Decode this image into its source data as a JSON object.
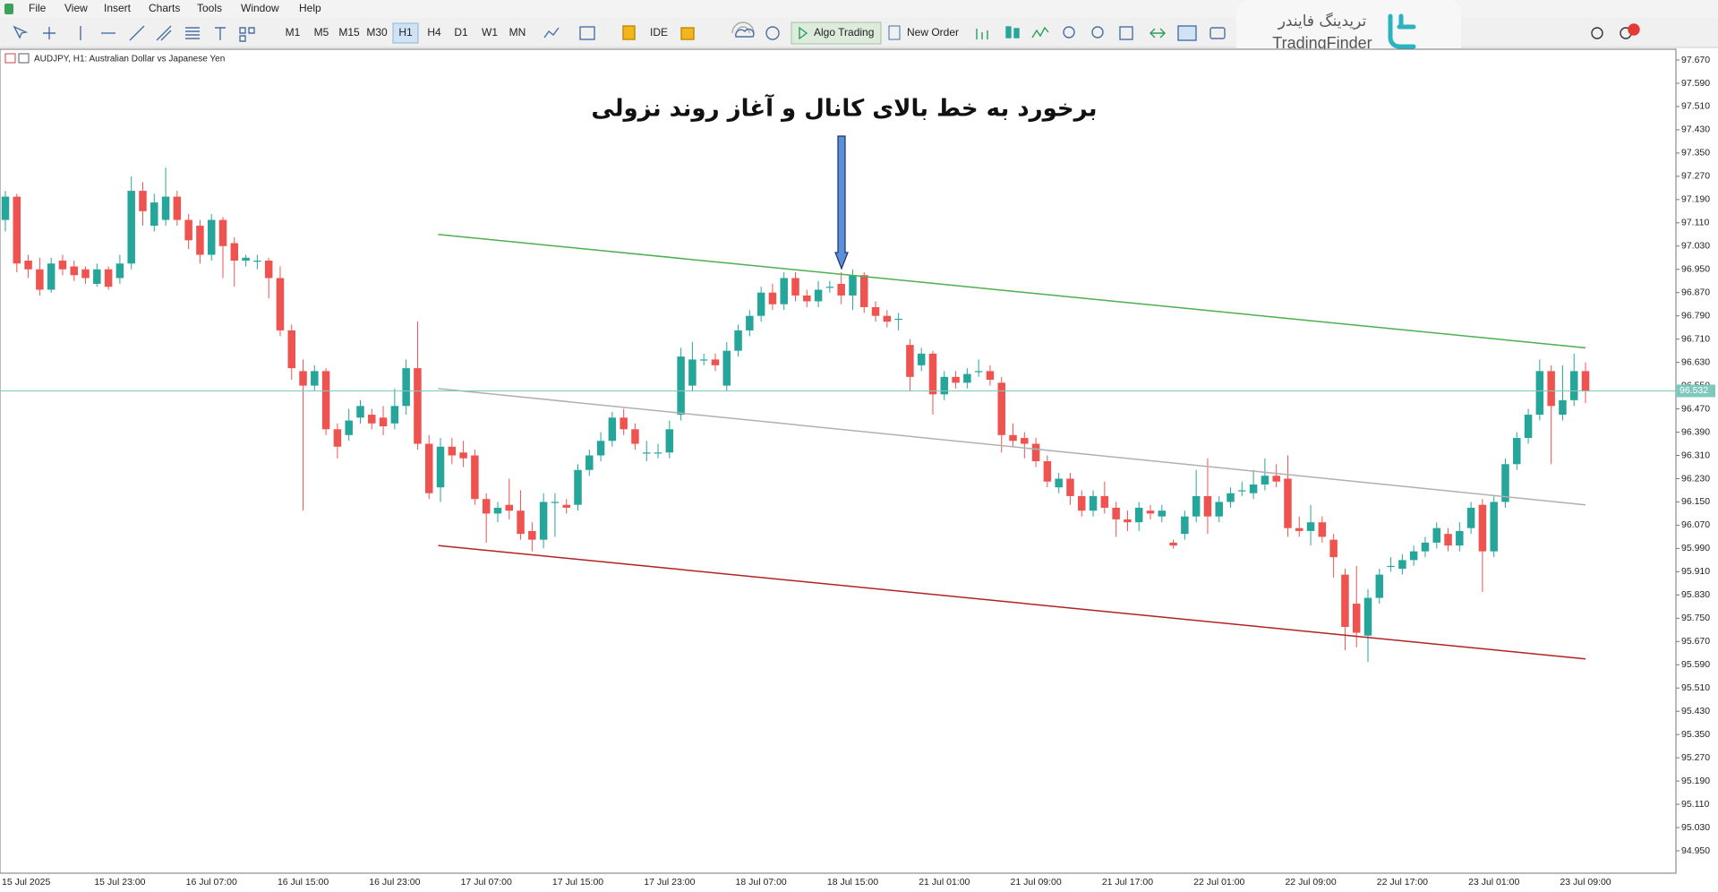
{
  "ui": {
    "menu": [
      "File",
      "View",
      "Insert",
      "Charts",
      "Tools",
      "Window",
      "Help"
    ],
    "timeframes": [
      "M1",
      "M5",
      "M15",
      "M30",
      "H1",
      "H4",
      "D1",
      "W1",
      "MN"
    ],
    "active_timeframe_index": 4,
    "ide": "IDE",
    "algo_trading": "Algo Trading",
    "new_order": "New Order",
    "symbol_label": "AUDJPY, H1:  Australian Dollar vs Japanese Yen",
    "logo_fa": "تریدینگ فایندر",
    "logo_en": "TradingFinder"
  },
  "chart_data": {
    "type": "candlestick",
    "annotation": "برخورد به خط بالای کانال و آغاز روند نزولی",
    "up_color": "#26a69a",
    "down_color": "#ef5350",
    "grid": false,
    "ylim": [
      94.873,
      97.707
    ],
    "yticks": [
      {
        "value": 97.67,
        "label": "97.670"
      },
      {
        "value": 97.59,
        "label": "97.590"
      },
      {
        "value": 97.51,
        "label": "97.510"
      },
      {
        "value": 97.43,
        "label": "97.430"
      },
      {
        "value": 97.35,
        "label": "97.350"
      },
      {
        "value": 97.27,
        "label": "97.270"
      },
      {
        "value": 97.19,
        "label": "97.190"
      },
      {
        "value": 97.11,
        "label": "97.110"
      },
      {
        "value": 97.03,
        "label": "97.030"
      },
      {
        "value": 96.95,
        "label": "96.950"
      },
      {
        "value": 96.87,
        "label": "96.870"
      },
      {
        "value": 96.79,
        "label": "96.790"
      },
      {
        "value": 96.71,
        "label": "96.710"
      },
      {
        "value": 96.63,
        "label": "96.630"
      },
      {
        "value": 96.55,
        "label": "96.550"
      },
      {
        "value": 96.47,
        "label": "96.470"
      },
      {
        "value": 96.39,
        "label": "96.390"
      },
      {
        "value": 96.31,
        "label": "96.310"
      },
      {
        "value": 96.23,
        "label": "96.230"
      },
      {
        "value": 96.15,
        "label": "96.150"
      },
      {
        "value": 96.07,
        "label": "96.070"
      },
      {
        "value": 95.99,
        "label": "95.990"
      },
      {
        "value": 95.91,
        "label": "95.910"
      },
      {
        "value": 95.83,
        "label": "95.830"
      },
      {
        "value": 95.75,
        "label": "95.750"
      },
      {
        "value": 95.67,
        "label": "95.670"
      },
      {
        "value": 95.59,
        "label": "95.590"
      },
      {
        "value": 95.51,
        "label": "95.510"
      },
      {
        "value": 95.43,
        "label": "95.430"
      },
      {
        "value": 95.35,
        "label": "95.350"
      },
      {
        "value": 95.27,
        "label": "95.270"
      },
      {
        "value": 95.19,
        "label": "95.190"
      },
      {
        "value": 95.11,
        "label": "95.110"
      },
      {
        "value": 95.03,
        "label": "95.030"
      },
      {
        "value": 94.95,
        "label": "94.950"
      }
    ],
    "bid": {
      "value": 96.532,
      "label": "96.532",
      "color": "#7fc8bd"
    },
    "categories": [
      "15 Jul 2025",
      null,
      null,
      null,
      null,
      null,
      null,
      null,
      "15 Jul 23:00",
      null,
      null,
      null,
      null,
      null,
      null,
      null,
      "16 Jul 07:00",
      null,
      null,
      null,
      null,
      null,
      null,
      null,
      "16 Jul 15:00",
      null,
      null,
      null,
      null,
      null,
      null,
      null,
      "16 Jul 23:00",
      null,
      null,
      null,
      null,
      null,
      null,
      null,
      "17 Jul 07:00",
      null,
      null,
      null,
      null,
      null,
      null,
      null,
      "17 Jul 15:00",
      null,
      null,
      null,
      null,
      null,
      null,
      null,
      "17 Jul 23:00",
      null,
      null,
      null,
      null,
      null,
      null,
      null,
      "18 Jul 07:00",
      null,
      null,
      null,
      null,
      null,
      null,
      null,
      "18 Jul 15:00",
      null,
      null,
      null,
      null,
      null,
      null,
      null,
      "21 Jul 01:00",
      null,
      null,
      null,
      null,
      null,
      null,
      null,
      "21 Jul 09:00",
      null,
      null,
      null,
      null,
      null,
      null,
      null,
      "21 Jul 17:00",
      null,
      null,
      null,
      null,
      null,
      null,
      null,
      "22 Jul 01:00",
      null,
      null,
      null,
      null,
      null,
      null,
      null,
      "22 Jul 09:00",
      null,
      null,
      null,
      null,
      null,
      null,
      null,
      "22 Jul 17:00",
      null,
      null,
      null,
      null,
      null,
      null,
      null,
      "23 Jul 01:00",
      null,
      null,
      null,
      null,
      null,
      null,
      null,
      "23 Jul 09:00",
      null,
      null
    ],
    "open": [
      97.12,
      97.2,
      96.98,
      96.95,
      96.88,
      96.98,
      96.96,
      96.95,
      96.9,
      96.95,
      96.92,
      96.97,
      97.22,
      97.1,
      97.12,
      97.2,
      97.12,
      97.1,
      97.0,
      97.12,
      97.04,
      96.98,
      96.98,
      96.98,
      96.92,
      96.74,
      96.6,
      96.55,
      96.6,
      96.4,
      96.38,
      96.44,
      96.45,
      96.44,
      96.42,
      96.48,
      96.61,
      96.35,
      96.2,
      96.34,
      96.32,
      96.31,
      96.16,
      96.11,
      96.14,
      96.12,
      96.05,
      96.02,
      96.15,
      96.14,
      96.14,
      96.26,
      96.31,
      96.36,
      96.44,
      96.4,
      96.32,
      96.32,
      96.32,
      96.45,
      96.55,
      96.64,
      96.64,
      96.55,
      96.67,
      96.74,
      96.79,
      96.87,
      96.83,
      96.92,
      96.86,
      96.84,
      96.89,
      96.9,
      96.86,
      96.93,
      96.82,
      96.79,
      96.78,
      96.69,
      96.62,
      96.66,
      96.52,
      96.58,
      96.56,
      96.6,
      96.6,
      96.56,
      96.38,
      96.37,
      96.35,
      96.29,
      96.2,
      96.23,
      96.17,
      96.12,
      96.17,
      96.13,
      96.09,
      96.08,
      96.12,
      96.1,
      96.01,
      96.04,
      96.1,
      96.17,
      96.1,
      96.15,
      96.19,
      96.18,
      96.21,
      96.24,
      96.23,
      96.06,
      96.05,
      96.08,
      96.02,
      95.9,
      95.8,
      95.69,
      95.82,
      95.93,
      95.92,
      95.95,
      95.98,
      96.01,
      96.04,
      96.0,
      96.06,
      96.14,
      95.98,
      96.15,
      96.28,
      96.37,
      96.45,
      96.6,
      96.45,
      96.5,
      96.6
    ],
    "high": [
      97.22,
      97.21,
      97.0,
      96.99,
      96.99,
      97.0,
      96.98,
      96.96,
      96.97,
      96.96,
      97.0,
      97.27,
      97.25,
      97.21,
      97.3,
      97.22,
      97.14,
      97.12,
      97.14,
      97.13,
      97.06,
      97.0,
      97.0,
      96.99,
      96.96,
      96.76,
      96.64,
      96.62,
      96.61,
      96.42,
      96.47,
      96.5,
      96.47,
      96.48,
      96.54,
      96.64,
      96.77,
      96.38,
      96.37,
      96.37,
      96.36,
      96.33,
      96.18,
      96.15,
      96.23,
      96.19,
      96.08,
      96.18,
      96.18,
      96.16,
      96.28,
      96.33,
      96.39,
      96.46,
      96.47,
      96.42,
      96.36,
      96.35,
      96.43,
      96.68,
      96.7,
      96.66,
      96.66,
      96.7,
      96.76,
      96.81,
      96.89,
      96.9,
      96.94,
      96.94,
      96.88,
      96.91,
      96.91,
      96.94,
      96.95,
      96.94,
      96.84,
      96.81,
      96.8,
      96.71,
      96.68,
      96.67,
      96.6,
      96.6,
      96.61,
      96.64,
      96.62,
      96.58,
      96.42,
      96.39,
      96.37,
      96.31,
      96.25,
      96.25,
      96.19,
      96.19,
      96.22,
      96.15,
      96.12,
      96.15,
      96.14,
      96.14,
      96.02,
      96.12,
      96.26,
      96.3,
      96.17,
      96.2,
      96.22,
      96.26,
      96.3,
      96.28,
      96.31,
      96.1,
      96.14,
      96.1,
      96.04,
      95.92,
      95.93,
      95.85,
      95.92,
      95.96,
      95.97,
      96.0,
      96.03,
      96.08,
      96.06,
      96.08,
      96.15,
      96.16,
      96.17,
      96.3,
      96.39,
      96.47,
      96.64,
      96.62,
      96.62,
      96.66,
      96.63
    ],
    "low": [
      97.08,
      96.94,
      96.92,
      96.86,
      96.87,
      96.93,
      96.91,
      96.9,
      96.89,
      96.88,
      96.9,
      96.95,
      97.1,
      97.08,
      97.1,
      97.1,
      97.02,
      96.97,
      96.98,
      96.92,
      96.89,
      96.96,
      96.95,
      96.85,
      96.72,
      96.57,
      96.12,
      96.53,
      96.38,
      96.3,
      96.36,
      96.42,
      96.4,
      96.38,
      96.4,
      96.45,
      96.33,
      96.16,
      96.15,
      96.28,
      96.27,
      96.14,
      96.01,
      96.08,
      96.09,
      96.02,
      95.98,
      95.99,
      96.03,
      96.11,
      96.12,
      96.24,
      96.29,
      96.34,
      96.38,
      96.33,
      96.29,
      96.3,
      96.3,
      96.43,
      96.53,
      96.62,
      96.6,
      96.53,
      96.65,
      96.72,
      96.77,
      96.81,
      96.81,
      96.84,
      96.82,
      96.82,
      96.87,
      96.83,
      96.81,
      96.8,
      96.77,
      96.75,
      96.74,
      96.53,
      96.6,
      96.45,
      96.5,
      96.54,
      96.54,
      96.58,
      96.55,
      96.32,
      96.34,
      96.3,
      96.27,
      96.2,
      96.18,
      96.14,
      96.1,
      96.1,
      96.11,
      96.03,
      96.05,
      96.05,
      96.09,
      96.08,
      95.99,
      96.02,
      96.08,
      96.04,
      96.08,
      96.13,
      96.17,
      96.16,
      96.19,
      96.2,
      96.03,
      96.03,
      96.0,
      96.01,
      95.89,
      95.64,
      95.65,
      95.6,
      95.8,
      95.91,
      95.9,
      95.93,
      95.96,
      95.99,
      95.98,
      95.98,
      96.04,
      95.84,
      95.96,
      96.13,
      96.26,
      96.35,
      96.43,
      96.28,
      96.43,
      96.48,
      96.49
    ],
    "close": [
      97.2,
      96.97,
      96.95,
      96.88,
      96.97,
      96.95,
      96.93,
      96.92,
      96.95,
      96.89,
      96.97,
      97.22,
      97.15,
      97.18,
      97.2,
      97.12,
      97.05,
      97.0,
      97.12,
      97.03,
      96.98,
      96.99,
      96.98,
      96.92,
      96.74,
      96.61,
      96.55,
      96.6,
      96.4,
      96.34,
      96.43,
      96.48,
      96.42,
      96.41,
      96.48,
      96.61,
      96.35,
      96.18,
      96.34,
      96.31,
      96.3,
      96.16,
      96.11,
      96.13,
      96.12,
      96.04,
      96.02,
      96.15,
      96.15,
      96.13,
      96.26,
      96.31,
      96.36,
      96.44,
      96.4,
      96.35,
      96.32,
      96.32,
      96.4,
      96.65,
      96.64,
      96.64,
      96.62,
      96.67,
      96.74,
      96.79,
      96.87,
      96.83,
      96.92,
      96.86,
      96.84,
      96.88,
      96.89,
      96.86,
      96.93,
      96.82,
      96.79,
      96.77,
      96.78,
      96.58,
      96.66,
      96.52,
      96.58,
      96.56,
      96.59,
      96.6,
      96.57,
      96.38,
      96.36,
      96.35,
      96.29,
      96.22,
      96.23,
      96.17,
      96.12,
      96.17,
      96.13,
      96.09,
      96.08,
      96.13,
      96.11,
      96.12,
      96.0,
      96.1,
      96.17,
      96.1,
      96.15,
      96.18,
      96.19,
      96.21,
      96.24,
      96.22,
      96.06,
      96.05,
      96.08,
      96.03,
      95.96,
      95.72,
      95.7,
      95.82,
      95.9,
      95.93,
      95.95,
      95.98,
      96.01,
      96.06,
      96.0,
      96.05,
      96.13,
      95.98,
      96.15,
      96.28,
      96.37,
      96.45,
      96.6,
      96.48,
      96.5,
      96.6,
      96.53
    ],
    "lines": [
      {
        "color": "#4caf50",
        "x": [
          37.8,
          138
        ],
        "values": [
          97.07,
          96.68
        ]
      },
      {
        "color": "#b0b0b0",
        "x": [
          37.8,
          138
        ],
        "values": [
          96.54,
          96.14
        ]
      },
      {
        "color": "#b22222",
        "x": [
          37.8,
          138
        ],
        "values": [
          96.0,
          95.61
        ]
      }
    ]
  }
}
